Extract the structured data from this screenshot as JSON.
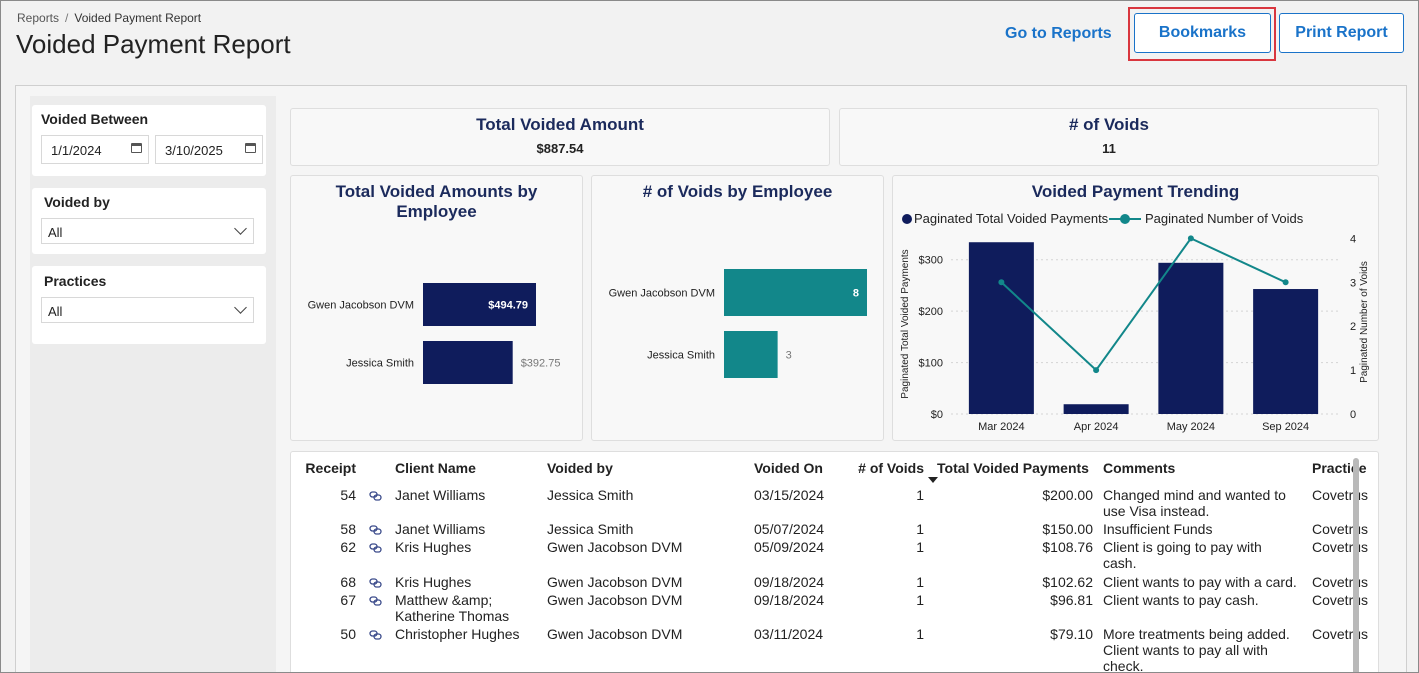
{
  "header": {
    "breadcrumb": {
      "root": "Reports",
      "separator": "/",
      "current": "Voided Payment Report"
    },
    "title": "Voided Payment Report",
    "go_to_reports": "Go to Reports",
    "bookmarks": "Bookmarks",
    "print_report": "Print Report"
  },
  "filters": {
    "voided_between": {
      "label": "Voided Between",
      "from": "1/1/2024",
      "to": "3/10/2025"
    },
    "voided_by": {
      "label": "Voided by",
      "value": "All"
    },
    "practices": {
      "label": "Practices",
      "value": "All"
    }
  },
  "kpis": {
    "total_voided_amount": {
      "label": "Total Voided Amount",
      "value": "$887.54"
    },
    "num_voids": {
      "label": "# of Voids",
      "value": "11"
    }
  },
  "chart_data": [
    {
      "type": "bar",
      "title": "Total Voided Amounts by Employee",
      "orientation": "horizontal",
      "categories": [
        "Gwen Jacobson DVM",
        "Jessica Smith"
      ],
      "values": [
        494.79,
        392.75
      ],
      "labels": [
        "$494.79",
        "$392.75"
      ],
      "color": "#0f1c5c"
    },
    {
      "type": "bar",
      "title": "# of Voids by Employee",
      "orientation": "horizontal",
      "categories": [
        "Gwen Jacobson DVM",
        "Jessica Smith"
      ],
      "values": [
        8,
        3
      ],
      "labels": [
        "8",
        "3"
      ],
      "color": "#12878a"
    },
    {
      "type": "bar",
      "title": "Voided Payment Trending",
      "categories": [
        "Mar 2024",
        "Apr 2024",
        "May 2024",
        "Sep 2024"
      ],
      "series": [
        {
          "name": "Paginated Total Voided Payments",
          "type": "bar",
          "axis": "left",
          "values": [
            334,
            19,
            294,
            243
          ],
          "color": "#0f1c5c"
        },
        {
          "name": "Paginated Number of Voids",
          "type": "line",
          "axis": "right",
          "values": [
            3,
            1,
            4,
            3
          ],
          "color": "#12878a"
        }
      ],
      "ylabel": "Paginated Total Voided Payments",
      "y2label": "Paginated Number of Voids",
      "yticks": [
        "$0",
        "$100",
        "$200",
        "$300"
      ],
      "ylim": [
        0,
        350
      ],
      "y2ticks": [
        "0",
        "1",
        "2",
        "3",
        "4"
      ],
      "y2lim": [
        0,
        4.1
      ],
      "legend": "top"
    }
  ],
  "table": {
    "columns": [
      "Receipt",
      "Client Name",
      "Voided by",
      "Voided On",
      "# of Voids",
      "Total Voided Payments",
      "Comments",
      "Practice"
    ],
    "rows": [
      {
        "receipt": "54",
        "client": [
          "Janet Williams"
        ],
        "voided_by": "Jessica Smith",
        "voided_on": "03/15/2024",
        "voids": "1",
        "total": "$200.00",
        "comments": [
          "Changed mind and wanted to",
          "use Visa instead."
        ],
        "practice": "Covetrus"
      },
      {
        "receipt": "58",
        "client": [
          "Janet Williams"
        ],
        "voided_by": "Jessica Smith",
        "voided_on": "05/07/2024",
        "voids": "1",
        "total": "$150.00",
        "comments": [
          "Insufficient Funds"
        ],
        "practice": "Covetrus"
      },
      {
        "receipt": "62",
        "client": [
          "Kris Hughes"
        ],
        "voided_by": "Gwen Jacobson DVM",
        "voided_on": "05/09/2024",
        "voids": "1",
        "total": "$108.76",
        "comments": [
          "Client is going to pay with",
          "cash."
        ],
        "practice": "Covetrus"
      },
      {
        "receipt": "68",
        "client": [
          "Kris Hughes"
        ],
        "voided_by": "Gwen Jacobson DVM",
        "voided_on": "09/18/2024",
        "voids": "1",
        "total": "$102.62",
        "comments": [
          "Client wants to pay with a card."
        ],
        "practice": "Covetrus"
      },
      {
        "receipt": "67",
        "client": [
          "Matthew &amp;",
          "Katherine Thomas"
        ],
        "voided_by": "Gwen Jacobson DVM",
        "voided_on": "09/18/2024",
        "voids": "1",
        "total": "$96.81",
        "comments": [
          "Client wants to pay cash."
        ],
        "practice": "Covetrus"
      },
      {
        "receipt": "50",
        "client": [
          "Christopher Hughes"
        ],
        "voided_by": "Gwen Jacobson DVM",
        "voided_on": "03/11/2024",
        "voids": "1",
        "total": "$79.10",
        "comments": [
          "More treatments being added.",
          "Client wants to pay all with",
          "check."
        ],
        "practice": "Covetrus"
      }
    ]
  }
}
